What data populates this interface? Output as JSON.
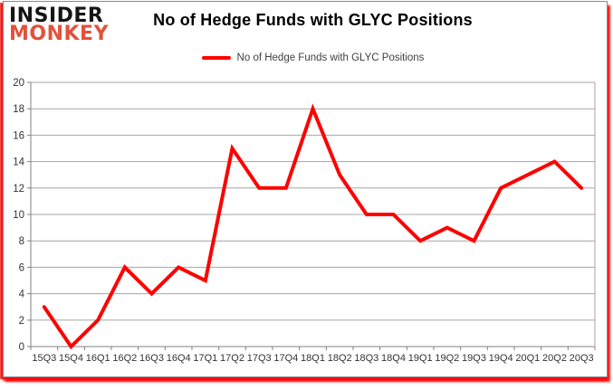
{
  "logo": {
    "line1": "INSIDER",
    "line2": "MONKEY"
  },
  "header": {
    "title": "No of Hedge Funds with GLYC Positions"
  },
  "legend": {
    "label": "No of Hedge Funds with GLYC Positions",
    "color": "#ff0000"
  },
  "colors": {
    "line_red": "#ff0000",
    "logo_black": "#151515",
    "logo_red": "#e2523b",
    "gridline": "#a6a6a6",
    "axis": "#808080",
    "tick_label": "#333333",
    "frame_shadow_red": "#fc0a0a"
  },
  "chart_data": {
    "type": "line",
    "title": "No of Hedge Funds with GLYC Positions",
    "series_name": "No of Hedge Funds with GLYC Positions",
    "categories": [
      "15Q3",
      "15Q4",
      "16Q1",
      "16Q2",
      "16Q3",
      "16Q4",
      "17Q1",
      "17Q2",
      "17Q3",
      "17Q4",
      "18Q1",
      "18Q2",
      "18Q3",
      "18Q4",
      "19Q1",
      "19Q2",
      "19Q3",
      "19Q4",
      "20Q1",
      "20Q2",
      "20Q3"
    ],
    "values": [
      3,
      0,
      2,
      6,
      4,
      6,
      5,
      15,
      12,
      12,
      18,
      13,
      10,
      10,
      8,
      9,
      8,
      12,
      13,
      14,
      12
    ],
    "ylim": [
      0,
      20
    ],
    "yticks": [
      0,
      2,
      4,
      6,
      8,
      10,
      12,
      14,
      16,
      18,
      20
    ],
    "xlabel": "",
    "ylabel": "",
    "grid": true,
    "legend_position": "top-center",
    "line_width": 4
  }
}
